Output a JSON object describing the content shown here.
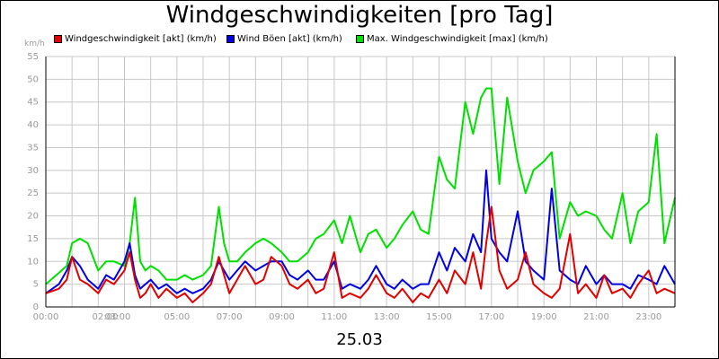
{
  "title": "Windgeschwindigkeiten [pro Tag]",
  "date_label": "25.03",
  "chart_data": {
    "type": "line",
    "title": "Windgeschwindigkeiten [pro Tag]",
    "ylabel": "km/h",
    "xlabel": "25.03",
    "ylim": [
      0,
      55
    ],
    "yticks": [
      "0",
      "5",
      "10",
      "15",
      "20",
      "25",
      "30",
      "35",
      "40",
      "45",
      "50",
      "55"
    ],
    "xlim": [
      0,
      24
    ],
    "xticks": [
      {
        "label": "00:00",
        "x": 0
      },
      {
        "label": "02:00",
        "x": 2
      },
      {
        "label": "03:00",
        "x": 3
      },
      {
        "label": "05:00",
        "x": 5
      },
      {
        "label": "07:00",
        "x": 7
      },
      {
        "label": "09:00",
        "x": 9
      },
      {
        "label": "11:00",
        "x": 11
      },
      {
        "label": "13:00",
        "x": 13
      },
      {
        "label": "15:00",
        "x": 15
      },
      {
        "label": "17:00",
        "x": 17
      },
      {
        "label": "19:00",
        "x": 19
      },
      {
        "label": "21:00",
        "x": 21
      },
      {
        "label": "23:00",
        "x": 23
      }
    ],
    "grid": true,
    "legend_position": "top",
    "series": [
      {
        "name": "Windgeschwindigkeit [akt] (km/h)",
        "color": "#e00000",
        "x": [
          0,
          0.5,
          0.8,
          1,
          1.3,
          1.6,
          2,
          2.3,
          2.6,
          3,
          3.2,
          3.4,
          3.6,
          3.8,
          4,
          4.3,
          4.6,
          5,
          5.3,
          5.6,
          6,
          6.3,
          6.6,
          6.8,
          7,
          7.3,
          7.6,
          8,
          8.3,
          8.6,
          9,
          9.3,
          9.6,
          10,
          10.3,
          10.6,
          11,
          11.3,
          11.6,
          12,
          12.3,
          12.6,
          13,
          13.3,
          13.6,
          14,
          14.3,
          14.6,
          15,
          15.3,
          15.6,
          16,
          16.3,
          16.6,
          16.8,
          17,
          17.3,
          17.6,
          18,
          18.3,
          18.6,
          19,
          19.3,
          19.6,
          20,
          20.3,
          20.6,
          21,
          21.3,
          21.6,
          22,
          22.3,
          22.6,
          23,
          23.3,
          23.6,
          24
        ],
        "y": [
          3,
          4,
          6,
          11,
          6,
          5,
          3,
          6,
          5,
          8,
          12,
          6,
          2,
          3,
          5,
          2,
          4,
          2,
          3,
          1,
          3,
          5,
          11,
          7,
          3,
          6,
          9,
          5,
          6,
          11,
          9,
          5,
          4,
          6,
          3,
          4,
          12,
          2,
          3,
          2,
          4,
          7,
          3,
          2,
          4,
          1,
          3,
          2,
          6,
          3,
          8,
          5,
          12,
          4,
          14,
          22,
          8,
          4,
          6,
          12,
          5,
          3,
          2,
          4,
          16,
          3,
          5,
          2,
          7,
          3,
          4,
          2,
          5,
          8,
          3,
          4,
          3
        ]
      },
      {
        "name": "Wind Böen [akt] (km/h)",
        "color": "#0000e0",
        "x": [
          0,
          0.5,
          0.8,
          1,
          1.3,
          1.6,
          2,
          2.3,
          2.6,
          3,
          3.2,
          3.4,
          3.6,
          3.8,
          4,
          4.3,
          4.6,
          5,
          5.3,
          5.6,
          6,
          6.3,
          6.6,
          6.8,
          7,
          7.3,
          7.6,
          8,
          8.3,
          8.6,
          9,
          9.3,
          9.6,
          10,
          10.3,
          10.6,
          11,
          11.3,
          11.6,
          12,
          12.3,
          12.6,
          13,
          13.3,
          13.6,
          14,
          14.3,
          14.6,
          15,
          15.3,
          15.6,
          16,
          16.3,
          16.6,
          16.8,
          17,
          17.3,
          17.6,
          18,
          18.3,
          18.6,
          19,
          19.3,
          19.6,
          20,
          20.3,
          20.6,
          21,
          21.3,
          21.6,
          22,
          22.3,
          22.6,
          23,
          23.3,
          23.6,
          24
        ],
        "y": [
          3,
          5,
          8,
          11,
          9,
          6,
          4,
          7,
          6,
          10,
          14,
          7,
          4,
          5,
          6,
          4,
          5,
          3,
          4,
          3,
          4,
          6,
          10,
          8,
          6,
          8,
          10,
          8,
          9,
          10,
          10,
          7,
          6,
          8,
          6,
          6,
          10,
          4,
          5,
          4,
          6,
          9,
          5,
          4,
          6,
          4,
          5,
          5,
          12,
          8,
          13,
          10,
          16,
          12,
          30,
          15,
          12,
          10,
          21,
          10,
          8,
          6,
          26,
          8,
          6,
          5,
          9,
          5,
          7,
          5,
          5,
          4,
          7,
          6,
          5,
          9,
          5
        ]
      },
      {
        "name": "Max. Windgeschwindigkeit [max] (km/h)",
        "color": "#00e000",
        "x": [
          0,
          0.4,
          0.8,
          1,
          1.3,
          1.6,
          2,
          2.3,
          2.6,
          3,
          3.2,
          3.4,
          3.6,
          3.8,
          4,
          4.3,
          4.6,
          5,
          5.3,
          5.6,
          6,
          6.3,
          6.6,
          6.8,
          7,
          7.3,
          7.6,
          8,
          8.3,
          8.6,
          9,
          9.3,
          9.6,
          10,
          10.3,
          10.6,
          11,
          11.3,
          11.6,
          12,
          12.3,
          12.6,
          13,
          13.3,
          13.6,
          14,
          14.3,
          14.6,
          15,
          15.3,
          15.6,
          16,
          16.3,
          16.6,
          16.8,
          17,
          17.3,
          17.6,
          18,
          18.3,
          18.6,
          19,
          19.3,
          19.6,
          20,
          20.3,
          20.6,
          21,
          21.3,
          21.6,
          22,
          22.3,
          22.6,
          23,
          23.3,
          23.6,
          24
        ],
        "y": [
          5,
          7,
          9,
          14,
          15,
          14,
          8,
          10,
          10,
          9,
          14,
          24,
          10,
          8,
          9,
          8,
          6,
          6,
          7,
          6,
          7,
          9,
          22,
          14,
          10,
          10,
          12,
          14,
          15,
          14,
          12,
          10,
          10,
          12,
          15,
          16,
          19,
          14,
          20,
          12,
          16,
          17,
          13,
          15,
          18,
          21,
          17,
          16,
          33,
          28,
          26,
          45,
          38,
          46,
          48,
          48,
          27,
          46,
          32,
          25,
          30,
          32,
          34,
          15,
          23,
          20,
          21,
          20,
          17,
          15,
          25,
          14,
          21,
          23,
          38,
          14,
          24
        ]
      }
    ]
  }
}
